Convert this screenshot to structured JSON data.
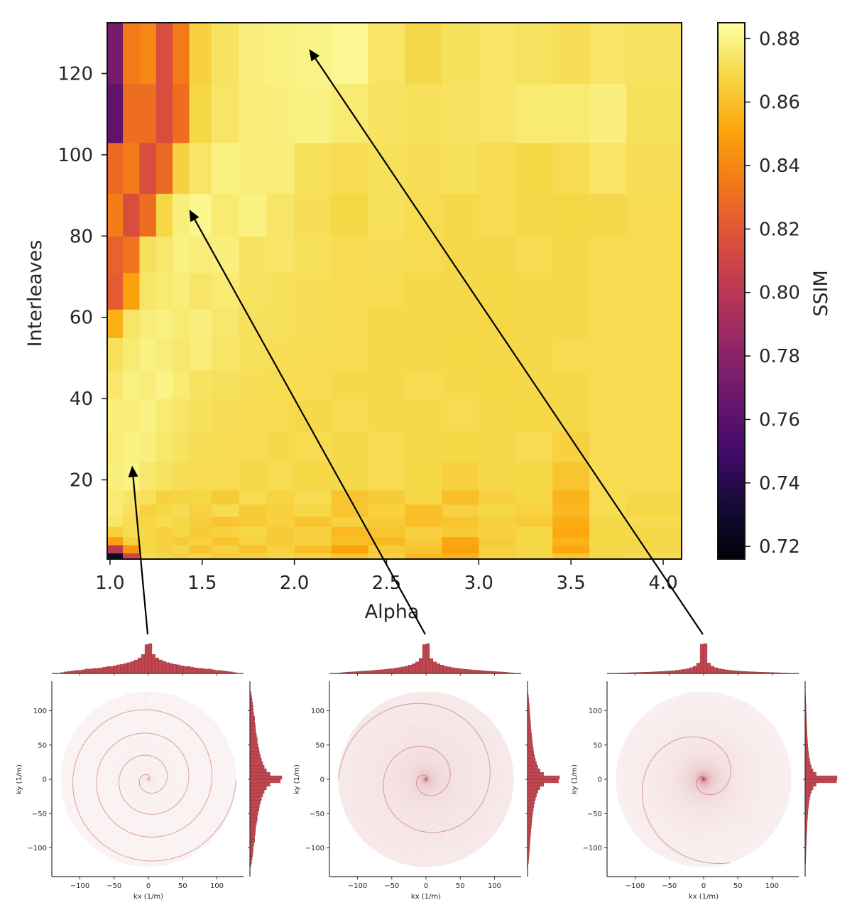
{
  "chart_data": [
    {
      "type": "heatmap",
      "xlabel": "Alpha",
      "ylabel": "Interleaves",
      "colorbar_label": "SSIM",
      "colormap": "inferno",
      "vmin": 0.716,
      "vmax": 0.885,
      "xlim": [
        0.985,
        4.1
      ],
      "ylim": [
        0.5,
        132.5
      ],
      "xticks": [
        1.0,
        1.5,
        2.0,
        2.5,
        3.0,
        3.5,
        4.0
      ],
      "xtick_labels": [
        "1.0",
        "1.5",
        "2.0",
        "2.5",
        "3.0",
        "3.5",
        "4.0"
      ],
      "yticks": [
        20,
        40,
        60,
        80,
        100,
        120
      ],
      "ytick_labels": [
        "20",
        "40",
        "60",
        "80",
        "100",
        "120"
      ],
      "colorbar_ticks": [
        0.72,
        0.74,
        0.76,
        0.78,
        0.8,
        0.82,
        0.84,
        0.86,
        0.88
      ],
      "colorbar_tick_labels": [
        "0.72",
        "0.74",
        "0.76",
        "0.78",
        "0.80",
        "0.82",
        "0.84",
        "0.86",
        "0.88"
      ],
      "x_edges": [
        0.985,
        1.07,
        1.16,
        1.25,
        1.34,
        1.43,
        1.55,
        1.7,
        1.85,
        2.0,
        2.2,
        2.4,
        2.6,
        2.8,
        3.0,
        3.2,
        3.4,
        3.6,
        3.8,
        4.1
      ],
      "y_edges": [
        0.5,
        2,
        4,
        6,
        8.5,
        11,
        14,
        17.5,
        24.5,
        32,
        40,
        47,
        55,
        62,
        71,
        80,
        90.5,
        103,
        117.5,
        132.5
      ],
      "values": [
        [
          0.725,
          0.81,
          0.87,
          0.868,
          0.866,
          0.868,
          0.864,
          0.866,
          0.868,
          0.866,
          0.862,
          0.866,
          0.858,
          0.856,
          0.866,
          0.868,
          0.862,
          0.869,
          0.87
        ],
        [
          0.8,
          0.845,
          0.868,
          0.866,
          0.868,
          0.862,
          0.866,
          0.862,
          0.866,
          0.86,
          0.85,
          0.864,
          0.862,
          0.85,
          0.866,
          0.868,
          0.852,
          0.868,
          0.869
        ],
        [
          0.85,
          0.866,
          0.868,
          0.866,
          0.864,
          0.866,
          0.862,
          0.866,
          0.864,
          0.866,
          0.86,
          0.858,
          0.864,
          0.852,
          0.864,
          0.868,
          0.856,
          0.868,
          0.868
        ],
        [
          0.866,
          0.87,
          0.868,
          0.866,
          0.868,
          0.864,
          0.866,
          0.868,
          0.864,
          0.866,
          0.858,
          0.862,
          0.866,
          0.864,
          0.866,
          0.868,
          0.852,
          0.868,
          0.869
        ],
        [
          0.874,
          0.87,
          0.868,
          0.87,
          0.868,
          0.865,
          0.862,
          0.864,
          0.866,
          0.862,
          0.866,
          0.864,
          0.86,
          0.862,
          0.866,
          0.864,
          0.854,
          0.869,
          0.87
        ],
        [
          0.876,
          0.872,
          0.866,
          0.868,
          0.87,
          0.866,
          0.87,
          0.864,
          0.866,
          0.868,
          0.862,
          0.866,
          0.86,
          0.866,
          0.868,
          0.866,
          0.858,
          0.87,
          0.868
        ],
        [
          0.876,
          0.874,
          0.872,
          0.866,
          0.867,
          0.868,
          0.864,
          0.87,
          0.867,
          0.87,
          0.862,
          0.864,
          0.868,
          0.86,
          0.866,
          0.868,
          0.856,
          0.87,
          0.869
        ],
        [
          0.878,
          0.88,
          0.875,
          0.873,
          0.871,
          0.87,
          0.87,
          0.869,
          0.87,
          0.868,
          0.869,
          0.87,
          0.868,
          0.866,
          0.869,
          0.868,
          0.862,
          0.87,
          0.87
        ],
        [
          0.877,
          0.879,
          0.878,
          0.875,
          0.873,
          0.871,
          0.87,
          0.87,
          0.869,
          0.87,
          0.869,
          0.87,
          0.869,
          0.868,
          0.869,
          0.87,
          0.866,
          0.87,
          0.87
        ],
        [
          0.878,
          0.877,
          0.879,
          0.876,
          0.874,
          0.872,
          0.871,
          0.87,
          0.87,
          0.869,
          0.87,
          0.869,
          0.869,
          0.87,
          0.869,
          0.868,
          0.869,
          0.87,
          0.87
        ],
        [
          0.875,
          0.879,
          0.877,
          0.88,
          0.876,
          0.873,
          0.872,
          0.871,
          0.87,
          0.87,
          0.869,
          0.869,
          0.87,
          0.869,
          0.868,
          0.869,
          0.869,
          0.87,
          0.87
        ],
        [
          0.872,
          0.876,
          0.879,
          0.877,
          0.875,
          0.877,
          0.874,
          0.872,
          0.871,
          0.87,
          0.87,
          0.869,
          0.869,
          0.868,
          0.869,
          0.869,
          0.87,
          0.87,
          0.87
        ],
        [
          0.855,
          0.874,
          0.877,
          0.879,
          0.876,
          0.878,
          0.875,
          0.872,
          0.872,
          0.871,
          0.87,
          0.869,
          0.869,
          0.869,
          0.868,
          0.869,
          0.869,
          0.87,
          0.87
        ],
        [
          0.822,
          0.85,
          0.874,
          0.876,
          0.877,
          0.874,
          0.876,
          0.873,
          0.872,
          0.871,
          0.87,
          0.87,
          0.869,
          0.869,
          0.868,
          0.869,
          0.869,
          0.87,
          0.87
        ],
        [
          0.825,
          0.832,
          0.872,
          0.875,
          0.879,
          0.877,
          0.878,
          0.873,
          0.874,
          0.872,
          0.87,
          0.871,
          0.87,
          0.869,
          0.869,
          0.87,
          0.869,
          0.87,
          0.87
        ],
        [
          0.836,
          0.815,
          0.83,
          0.868,
          0.878,
          0.881,
          0.876,
          0.879,
          0.874,
          0.871,
          0.868,
          0.872,
          0.87,
          0.869,
          0.87,
          0.869,
          0.868,
          0.869,
          0.87
        ],
        [
          0.828,
          0.835,
          0.815,
          0.828,
          0.866,
          0.874,
          0.879,
          0.877,
          0.877,
          0.872,
          0.87,
          0.872,
          0.871,
          0.872,
          0.87,
          0.868,
          0.87,
          0.874,
          0.871
        ],
        [
          0.762,
          0.83,
          0.83,
          0.815,
          0.83,
          0.868,
          0.874,
          0.877,
          0.878,
          0.879,
          0.876,
          0.873,
          0.872,
          0.873,
          0.874,
          0.876,
          0.876,
          0.878,
          0.872
        ],
        [
          0.772,
          0.835,
          0.84,
          0.815,
          0.835,
          0.866,
          0.873,
          0.878,
          0.879,
          0.88,
          0.882,
          0.874,
          0.869,
          0.872,
          0.874,
          0.873,
          0.871,
          0.874,
          0.873
        ]
      ],
      "annotations": [
        {
          "type": "arrow",
          "target": [
            1.12,
            23.5
          ],
          "from_subplot": 0
        },
        {
          "type": "arrow",
          "target": [
            1.43,
            86.5
          ],
          "from_subplot": 1
        },
        {
          "type": "arrow",
          "target": [
            2.08,
            126
          ],
          "from_subplot": 2
        }
      ]
    },
    {
      "type": "line",
      "subtype": "spiral-trajectory-with-marginal-histograms",
      "xlabel": "kx (1/m)",
      "ylabel": "ky (1/m)",
      "xlim": [
        -141,
        141
      ],
      "ylim": [
        -141,
        141
      ],
      "ticks": [
        -100,
        -50,
        0,
        50,
        100
      ],
      "tick_labels": [
        "−100",
        "−50",
        "0",
        "50",
        "100"
      ],
      "kmax": 128,
      "line_color": "#c0464f",
      "hist_color": "#c0464f",
      "spirals": [
        {
          "alpha": 1.12,
          "interleaves": 24,
          "turns": 4
        },
        {
          "alpha": 1.43,
          "interleaves": 87,
          "turns": 2.5
        },
        {
          "alpha": 2.08,
          "interleaves": 126,
          "turns": 1.8
        }
      ]
    }
  ]
}
